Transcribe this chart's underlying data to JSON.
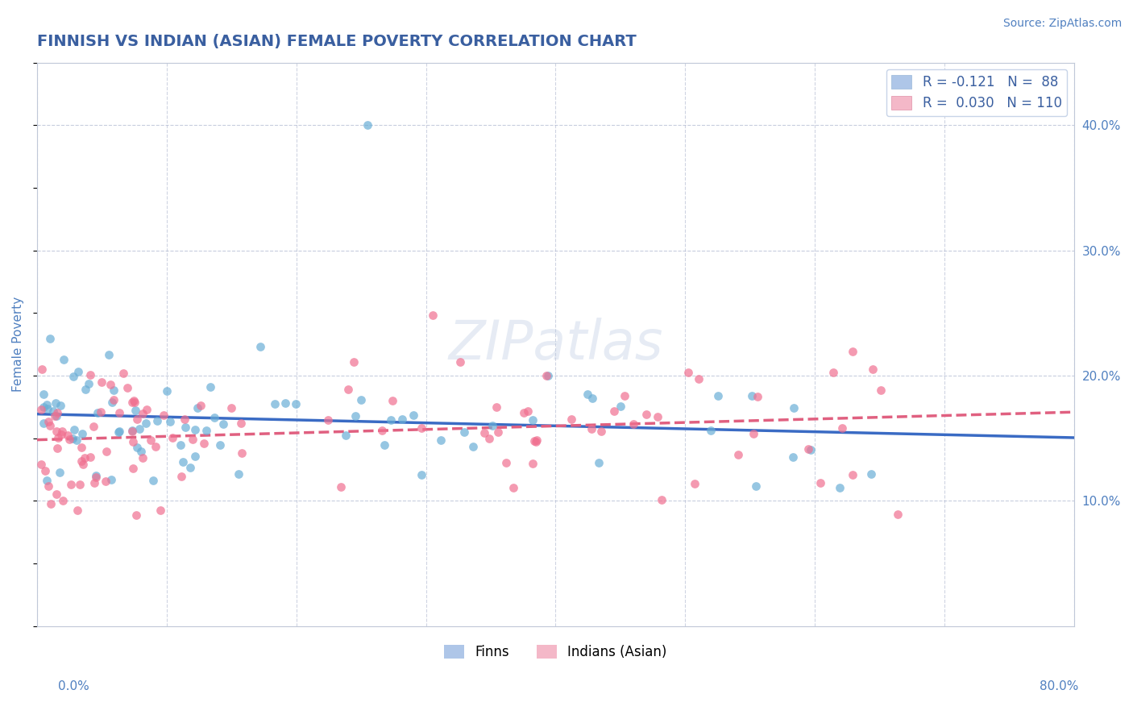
{
  "title": "FINNISH VS INDIAN (ASIAN) FEMALE POVERTY CORRELATION CHART",
  "source": "Source: ZipAtlas.com",
  "ylabel": "Female Poverty",
  "right_yticks": [
    0.1,
    0.2,
    0.3,
    0.4
  ],
  "right_yticklabels": [
    "10.0%",
    "20.0%",
    "30.0%",
    "40.0%"
  ],
  "xlim": [
    0.0,
    0.8
  ],
  "ylim": [
    0.0,
    0.45
  ],
  "finns_color": "#6aaed6",
  "indians_color": "#f07090",
  "finns_R": -0.121,
  "finns_N": 88,
  "indians_R": 0.03,
  "indians_N": 110,
  "watermark": "ZIPatlas",
  "title_color": "#3a5fa0",
  "axis_label_color": "#5080c0",
  "tick_color": "#5080c0",
  "source_color": "#5080c0",
  "legend_box_color": "#aec6e8",
  "legend_box2_color": "#f4b8c8",
  "finn_trend_color": "#3a6bc4",
  "indian_trend_color": "#e06080",
  "grid_color": "#b0b8d0",
  "spine_color": "#c0c8d8",
  "watermark_color": "#b8c8e0"
}
